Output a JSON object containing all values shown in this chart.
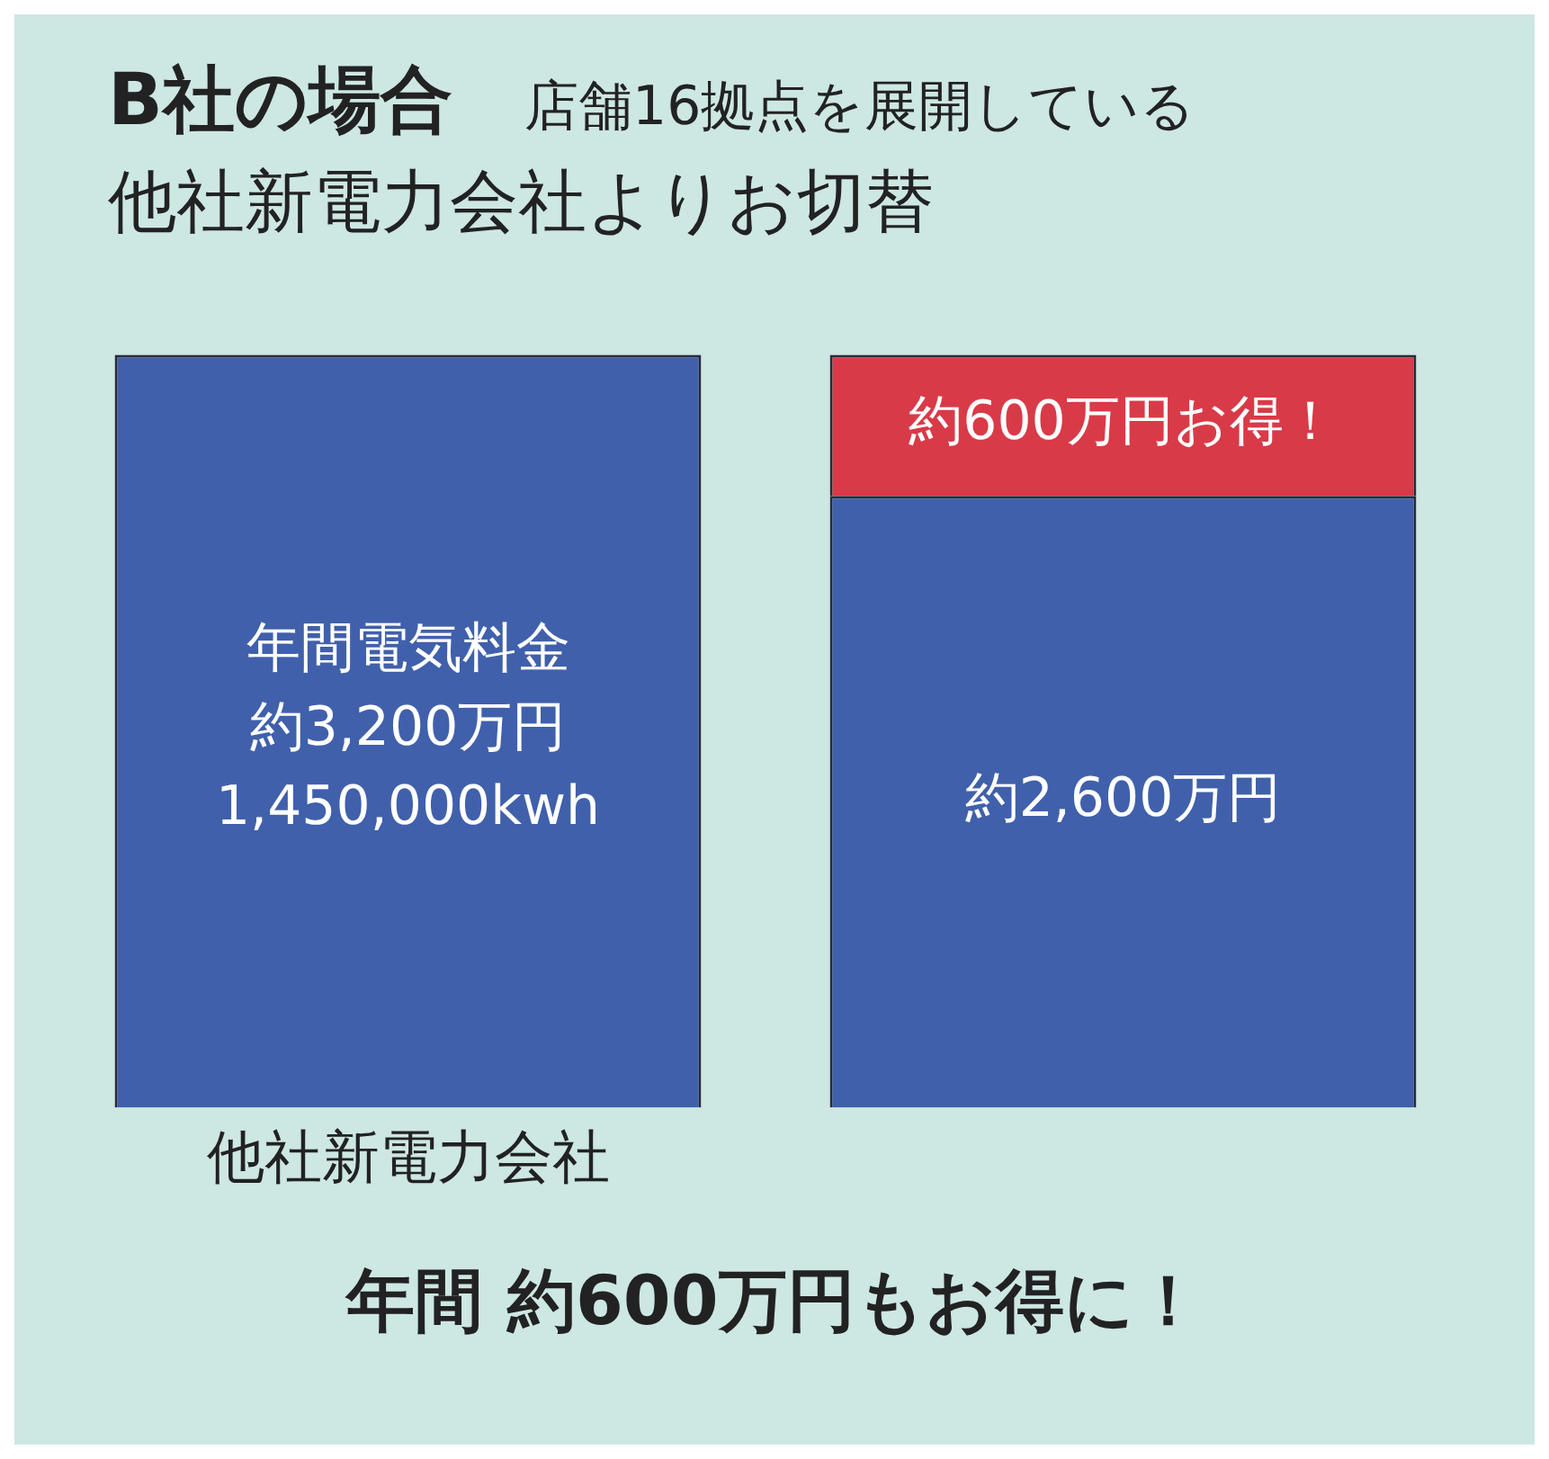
{
  "chart_data": {
    "type": "bar",
    "title": "B社の場合",
    "subtitle": "店舗16拠点を展開している",
    "categories": [
      "他社新電力会社",
      null
    ],
    "stacked": true,
    "grid": false,
    "legend": false,
    "series": [
      {
        "color": "#4060ab",
        "values": [
          3200,
          2600
        ],
        "value_labels": [
          "約3,200万円\n1,450,000kwh",
          "約2,600万円"
        ]
      },
      {
        "color": "#d93a48",
        "values": [
          null,
          600
        ],
        "value_labels": [
          null,
          "約600万円お得！"
        ]
      }
    ],
    "annotations": [
      "他社新電力会社よりお切替",
      "年間電気料金",
      "年間 約600万円もお得に！"
    ]
  }
}
